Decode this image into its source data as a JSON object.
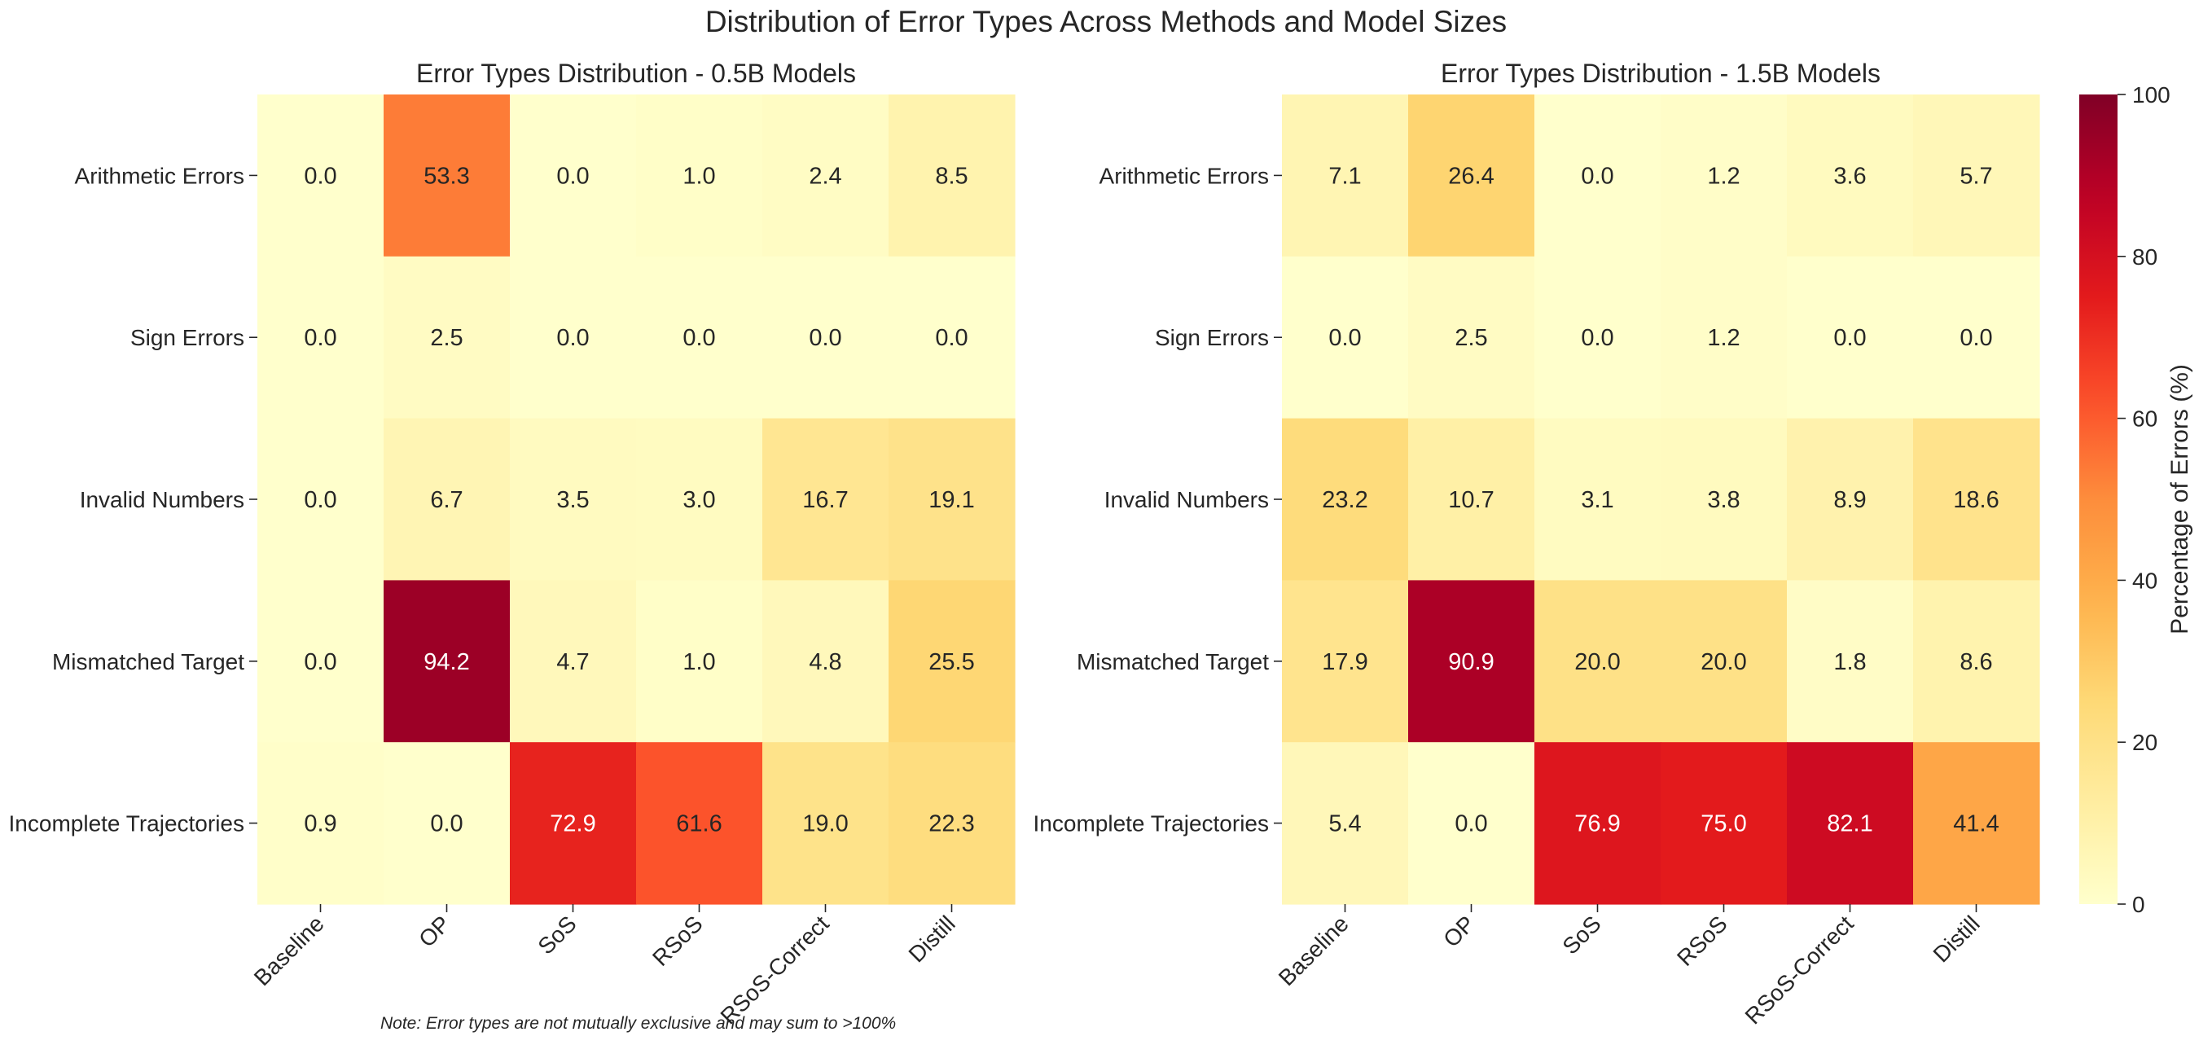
{
  "suptitle": "Distribution of Error Types Across Methods and Model Sizes",
  "footnote": "Note: Error types are not mutually exclusive and may sum to >100%",
  "chart_data": [
    {
      "type": "heatmap",
      "title": "Error Types Distribution - 0.5B Models",
      "x_categories": [
        "Baseline",
        "OP",
        "SoS",
        "RSoS",
        "RSoS-Correct",
        "Distill"
      ],
      "y_categories": [
        "Arithmetic Errors",
        "Sign Errors",
        "Invalid Numbers",
        "Mismatched Target",
        "Incomplete Trajectories"
      ],
      "values": [
        [
          0.0,
          53.3,
          0.0,
          1.0,
          2.4,
          8.5
        ],
        [
          0.0,
          2.5,
          0.0,
          0.0,
          0.0,
          0.0
        ],
        [
          0.0,
          6.7,
          3.5,
          3.0,
          16.7,
          19.1
        ],
        [
          0.0,
          94.2,
          4.7,
          1.0,
          4.8,
          25.5
        ],
        [
          0.9,
          0.0,
          72.9,
          61.6,
          19.0,
          22.3
        ]
      ],
      "colormap": "YlOrRd",
      "vmin": 0,
      "vmax": 100
    },
    {
      "type": "heatmap",
      "title": "Error Types Distribution - 1.5B Models",
      "x_categories": [
        "Baseline",
        "OP",
        "SoS",
        "RSoS",
        "RSoS-Correct",
        "Distill"
      ],
      "y_categories": [
        "Arithmetic Errors",
        "Sign Errors",
        "Invalid Numbers",
        "Mismatched Target",
        "Incomplete Trajectories"
      ],
      "values": [
        [
          7.1,
          26.4,
          0.0,
          1.2,
          3.6,
          5.7
        ],
        [
          0.0,
          2.5,
          0.0,
          1.2,
          0.0,
          0.0
        ],
        [
          23.2,
          10.7,
          3.1,
          3.8,
          8.9,
          18.6
        ],
        [
          17.9,
          90.9,
          20.0,
          20.0,
          1.8,
          8.6
        ],
        [
          5.4,
          0.0,
          76.9,
          75.0,
          82.1,
          41.4
        ]
      ],
      "colormap": "YlOrRd",
      "vmin": 0,
      "vmax": 100,
      "colorbar": {
        "label": "Percentage of Errors (%)",
        "ticks": [
          0,
          20,
          40,
          60,
          80,
          100
        ]
      }
    }
  ]
}
